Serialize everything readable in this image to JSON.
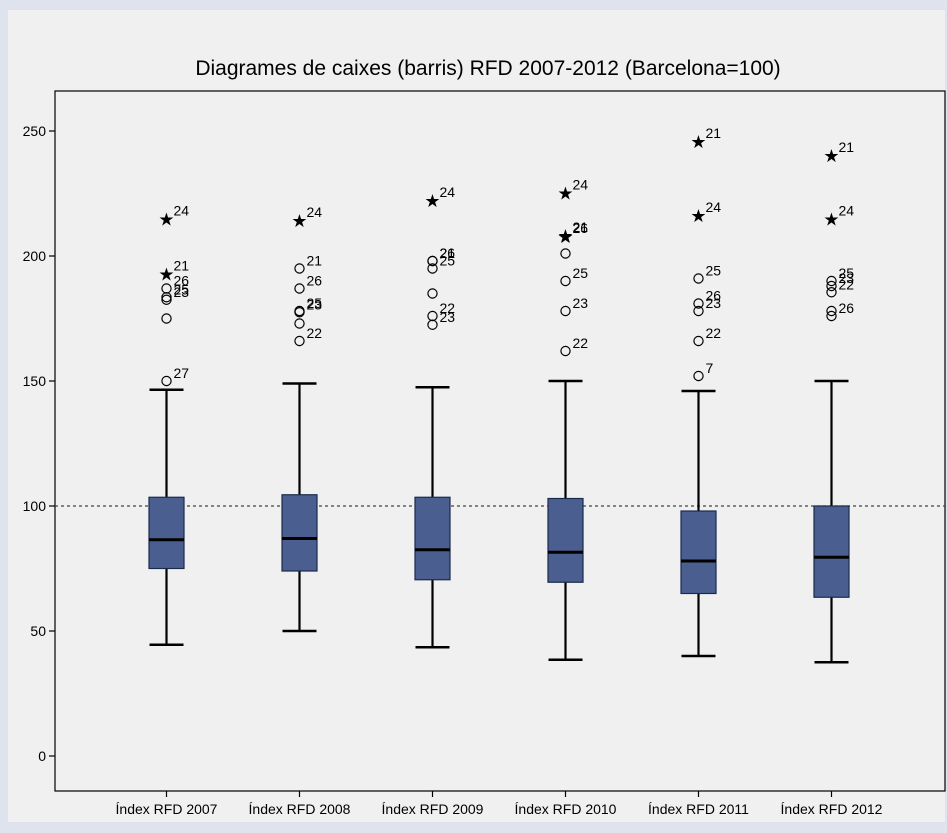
{
  "chart_data": {
    "type": "boxplot",
    "title": "Diagrames de caixes (barris) RFD 2007-2012 (Barcelona=100)",
    "xlabel": "",
    "ylabel": "",
    "ylim": [
      -14,
      266
    ],
    "yticks": [
      0,
      50,
      100,
      150,
      200,
      250
    ],
    "reference_line": 100,
    "colors": {
      "background": "#dfe3ee",
      "plot_area": "#f0f0f0",
      "box_fill": "#4a5f8f",
      "box_stroke": "#1a2a4a"
    },
    "categories": [
      "Índex RFD 2007",
      "Índex RFD 2008",
      "Índex RFD 2009",
      "Índex RFD 2010",
      "Índex RFD 2011",
      "Índex RFD 2012"
    ],
    "boxes": [
      {
        "min": 44.5,
        "q1": 75,
        "median": 86.5,
        "q3": 103.5,
        "max": 146.5,
        "outliers": [
          {
            "v": 215,
            "m": "star",
            "l": "24"
          },
          {
            "v": 193,
            "m": "star",
            "l": "21"
          },
          {
            "v": 187,
            "m": "circle",
            "l": "26"
          },
          {
            "v": 182.5,
            "m": "circle",
            "l": "23"
          },
          {
            "v": 183.5,
            "m": "circle",
            "l": "25"
          },
          {
            "v": 175,
            "m": "circle",
            "l": ""
          },
          {
            "v": 150,
            "m": "circle",
            "l": "27"
          }
        ]
      },
      {
        "min": 50,
        "q1": 74,
        "median": 87,
        "q3": 104.5,
        "max": 149,
        "outliers": [
          {
            "v": 214.5,
            "m": "star",
            "l": "24"
          },
          {
            "v": 195,
            "m": "circle",
            "l": "21"
          },
          {
            "v": 187,
            "m": "circle",
            "l": "26"
          },
          {
            "v": 178,
            "m": "circle",
            "l": "25"
          },
          {
            "v": 177.5,
            "m": "circle",
            "l": "23"
          },
          {
            "v": 173,
            "m": "circle",
            "l": ""
          },
          {
            "v": 166,
            "m": "circle",
            "l": "22"
          }
        ]
      },
      {
        "min": 43.5,
        "q1": 70.5,
        "median": 82.5,
        "q3": 103.5,
        "max": 147.5,
        "outliers": [
          {
            "v": 222.5,
            "m": "star",
            "l": "24"
          },
          {
            "v": 198,
            "m": "circle",
            "l": "21"
          },
          {
            "v": 198,
            "m": "circle",
            "l": "26"
          },
          {
            "v": 195,
            "m": "circle",
            "l": "25"
          },
          {
            "v": 185,
            "m": "circle",
            "l": ""
          },
          {
            "v": 176,
            "m": "circle",
            "l": "22"
          },
          {
            "v": 172.5,
            "m": "circle",
            "l": "23"
          }
        ]
      },
      {
        "min": 38.5,
        "q1": 69.5,
        "median": 81.5,
        "q3": 103,
        "max": 150,
        "outliers": [
          {
            "v": 225.5,
            "m": "star",
            "l": "24"
          },
          {
            "v": 208.5,
            "m": "star",
            "l": "21"
          },
          {
            "v": 208,
            "m": "star",
            "l": "26"
          },
          {
            "v": 201,
            "m": "circle",
            "l": ""
          },
          {
            "v": 190,
            "m": "circle",
            "l": "25"
          },
          {
            "v": 178,
            "m": "circle",
            "l": "23"
          },
          {
            "v": 162,
            "m": "circle",
            "l": "22"
          }
        ]
      },
      {
        "min": 40,
        "q1": 65,
        "median": 78,
        "q3": 98,
        "max": 146,
        "outliers": [
          {
            "v": 246,
            "m": "star",
            "l": "21"
          },
          {
            "v": 216.5,
            "m": "star",
            "l": "24"
          },
          {
            "v": 191,
            "m": "circle",
            "l": "25"
          },
          {
            "v": 181,
            "m": "circle",
            "l": "26"
          },
          {
            "v": 178,
            "m": "circle",
            "l": "23"
          },
          {
            "v": 166,
            "m": "circle",
            "l": "22"
          },
          {
            "v": 152,
            "m": "circle",
            "l": "7"
          }
        ]
      },
      {
        "min": 37.5,
        "q1": 63.5,
        "median": 79.5,
        "q3": 100,
        "max": 150,
        "outliers": [
          {
            "v": 240.5,
            "m": "star",
            "l": "21"
          },
          {
            "v": 215,
            "m": "star",
            "l": "24"
          },
          {
            "v": 190,
            "m": "circle",
            "l": "25"
          },
          {
            "v": 188,
            "m": "circle",
            "l": "23"
          },
          {
            "v": 185.5,
            "m": "circle",
            "l": "22"
          },
          {
            "v": 178,
            "m": "circle",
            "l": ""
          },
          {
            "v": 176,
            "m": "circle",
            "l": "26"
          }
        ]
      }
    ]
  }
}
